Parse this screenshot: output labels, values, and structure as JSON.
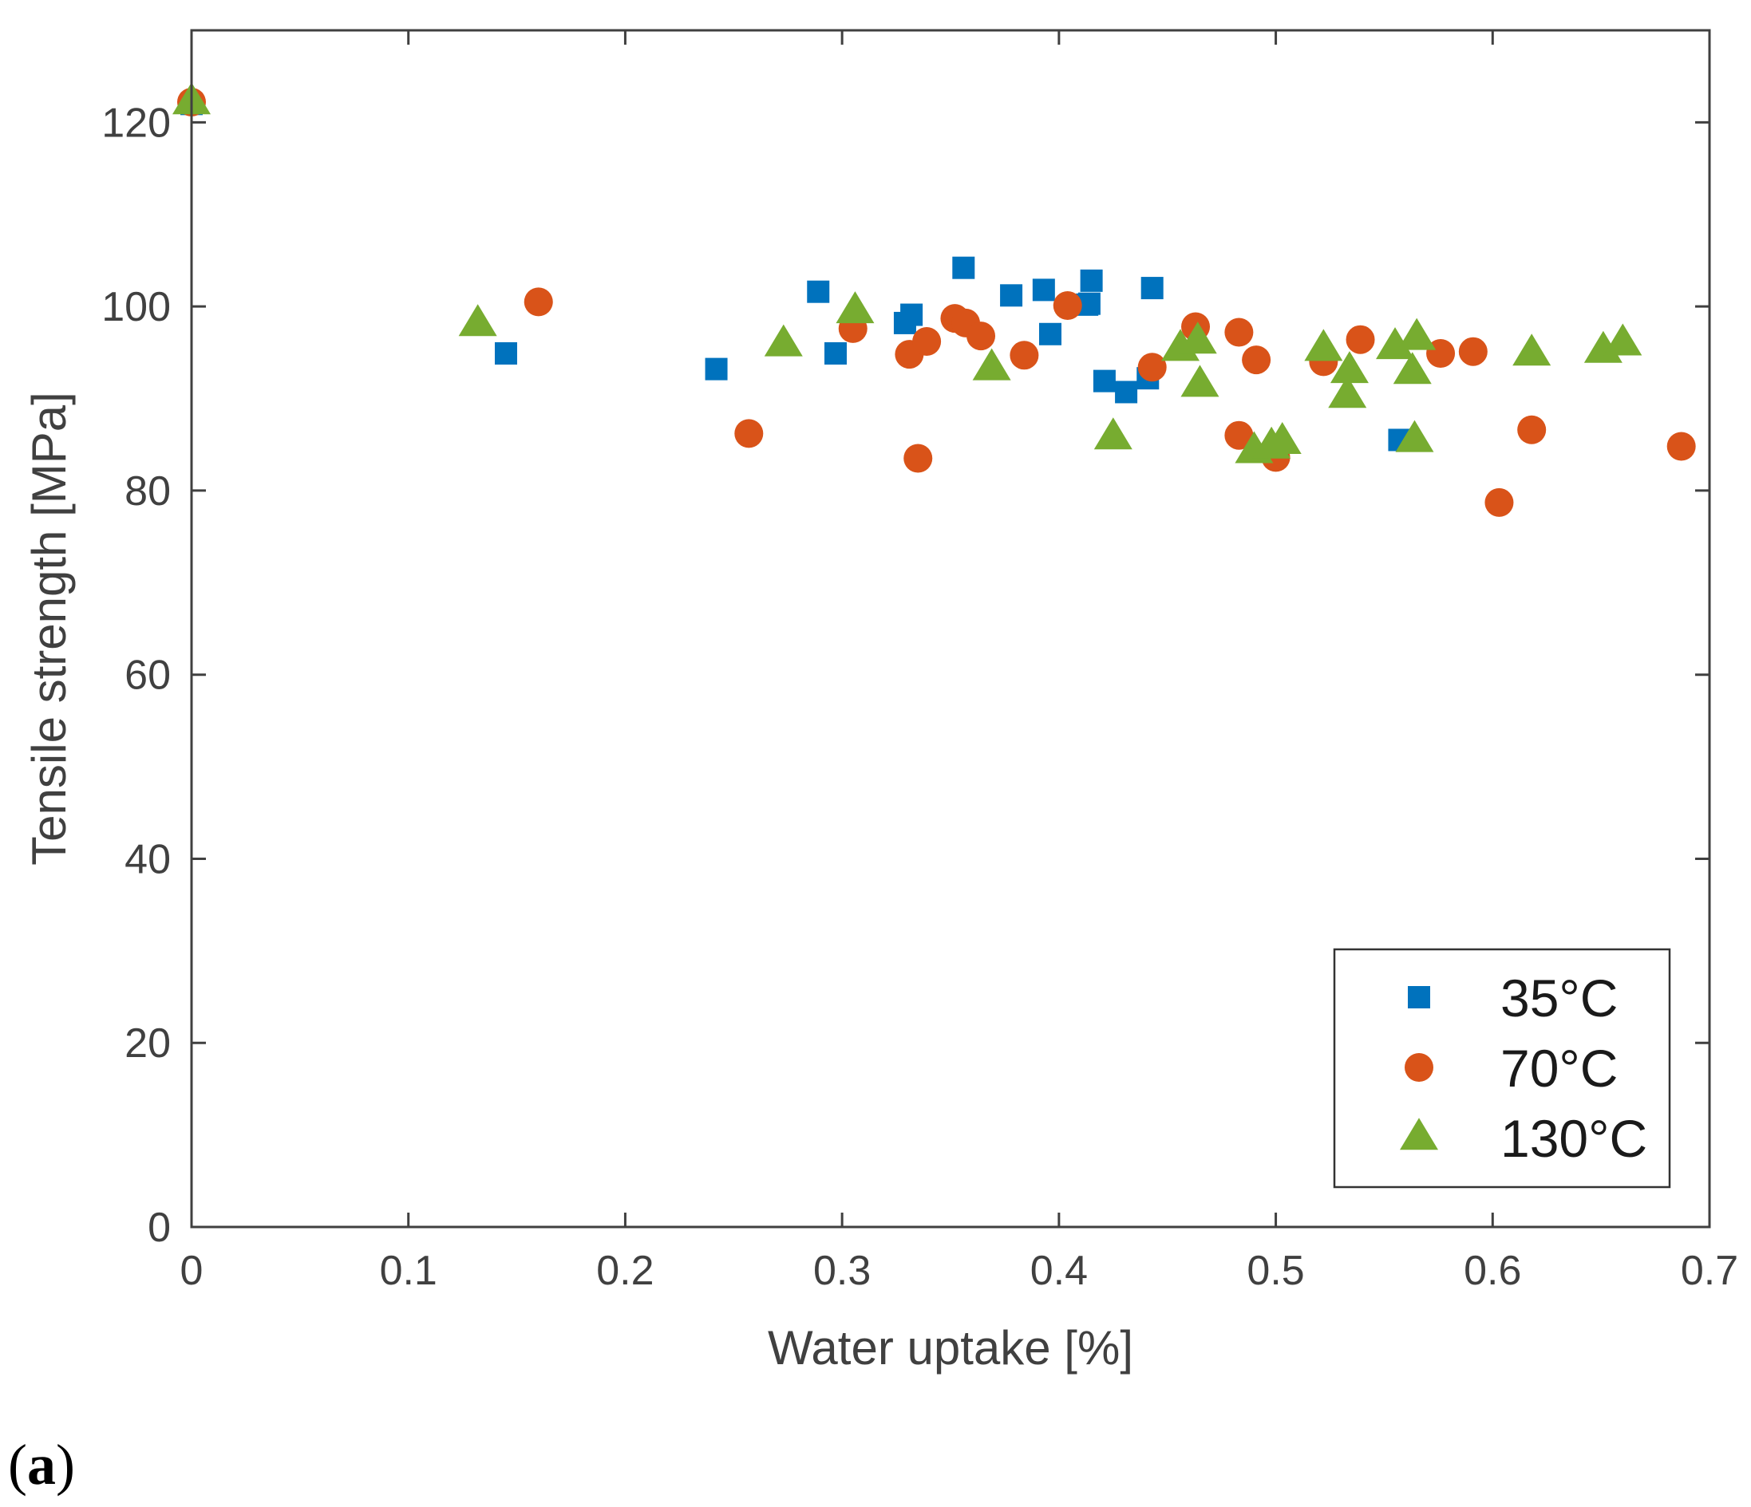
{
  "panel_label": {
    "open": "(",
    "letter": "a",
    "close": ")"
  },
  "colors": {
    "axis": "#404040",
    "series_35": "#0072BD",
    "series_70": "#D95319",
    "series_130": "#77AC30"
  },
  "chart_data": {
    "type": "scatter",
    "title": "",
    "xlabel": "Water uptake [%]",
    "ylabel": "Tensile strength [MPa]",
    "xlim": [
      0,
      0.7
    ],
    "ylim": [
      0,
      130
    ],
    "xticks": [
      0,
      0.1,
      0.2,
      0.3,
      0.4,
      0.5,
      0.6,
      0.7
    ],
    "xtick_labels": [
      "0",
      "0.1",
      "0.2",
      "0.3",
      "0.4",
      "0.5",
      "0.6",
      "0.7"
    ],
    "yticks": [
      0,
      20,
      40,
      60,
      80,
      100,
      120
    ],
    "ytick_labels": [
      "0",
      "20",
      "40",
      "60",
      "80",
      "100",
      "120"
    ],
    "grid": false,
    "legend_position": "bottom-right",
    "series": [
      {
        "name": "35°C",
        "marker": "square",
        "color": "#0072BD",
        "points": [
          [
            0,
            122
          ],
          [
            0.145,
            94.9
          ],
          [
            0.242,
            93.2
          ],
          [
            0.289,
            101.6
          ],
          [
            0.297,
            94.9
          ],
          [
            0.329,
            98.2
          ],
          [
            0.332,
            99.1
          ],
          [
            0.356,
            104.2
          ],
          [
            0.378,
            101.2
          ],
          [
            0.393,
            101.8
          ],
          [
            0.396,
            97.0
          ],
          [
            0.413,
            100.2
          ],
          [
            0.414,
            100.3
          ],
          [
            0.415,
            102.8
          ],
          [
            0.421,
            91.9
          ],
          [
            0.431,
            90.7
          ],
          [
            0.441,
            92.2
          ],
          [
            0.443,
            102.0
          ],
          [
            0.557,
            85.5
          ]
        ]
      },
      {
        "name": "70°C",
        "marker": "circle",
        "color": "#D95319",
        "points": [
          [
            0,
            122.2
          ],
          [
            0.16,
            100.5
          ],
          [
            0.257,
            86.2
          ],
          [
            0.305,
            97.6
          ],
          [
            0.331,
            94.8
          ],
          [
            0.335,
            83.5
          ],
          [
            0.339,
            96.2
          ],
          [
            0.352,
            98.7
          ],
          [
            0.357,
            98.2
          ],
          [
            0.364,
            96.8
          ],
          [
            0.384,
            94.7
          ],
          [
            0.404,
            100.1
          ],
          [
            0.443,
            93.4
          ],
          [
            0.463,
            97.8
          ],
          [
            0.483,
            97.2
          ],
          [
            0.483,
            86.0
          ],
          [
            0.491,
            94.2
          ],
          [
            0.5,
            83.6
          ],
          [
            0.522,
            94.0
          ],
          [
            0.539,
            96.4
          ],
          [
            0.576,
            94.9
          ],
          [
            0.591,
            95.1
          ],
          [
            0.603,
            78.7
          ],
          [
            0.618,
            86.6
          ],
          [
            0.687,
            84.8
          ]
        ]
      },
      {
        "name": "130°C",
        "marker": "triangle",
        "color": "#77AC30",
        "points": [
          [
            0,
            122.2
          ],
          [
            0.132,
            98.1
          ],
          [
            0.273,
            95.9
          ],
          [
            0.306,
            99.5
          ],
          [
            0.369,
            93.3
          ],
          [
            0.425,
            85.8
          ],
          [
            0.456,
            95.4
          ],
          [
            0.464,
            96.2
          ],
          [
            0.465,
            91.5
          ],
          [
            0.49,
            84.3
          ],
          [
            0.498,
            84.8
          ],
          [
            0.503,
            85.3
          ],
          [
            0.522,
            95.4
          ],
          [
            0.533,
            90.3
          ],
          [
            0.534,
            93.0
          ],
          [
            0.555,
            95.6
          ],
          [
            0.563,
            92.9
          ],
          [
            0.564,
            85.5
          ],
          [
            0.565,
            96.6
          ],
          [
            0.618,
            94.9
          ],
          [
            0.651,
            95.2
          ],
          [
            0.66,
            96.0
          ]
        ]
      }
    ]
  }
}
